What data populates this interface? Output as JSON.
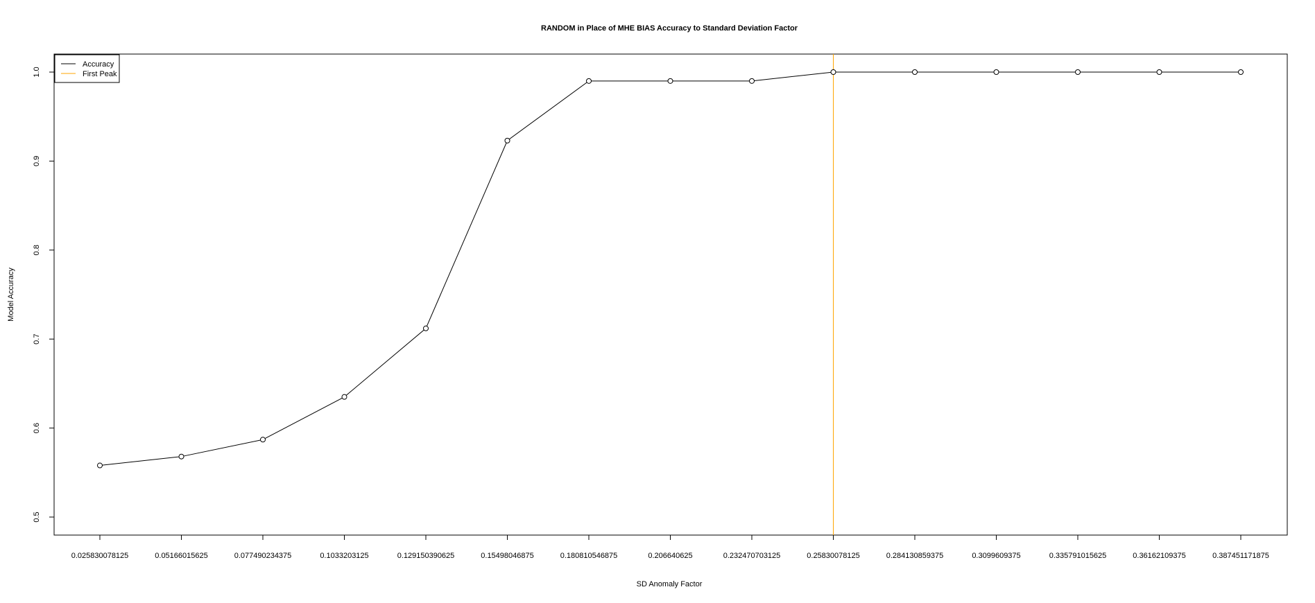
{
  "chart_data": {
    "type": "line",
    "title": "RANDOM in Place of MHE BIAS Accuracy to Standard Deviation Factor",
    "xlabel": "SD Anomaly Factor",
    "ylabel": "Model Accuracy",
    "categories": [
      "0.025830078125",
      "0.05166015625",
      "0.077490234375",
      "0.1033203125",
      "0.129150390625",
      "0.15498046875",
      "0.180810546875",
      "0.206640625",
      "0.232470703125",
      "0.25830078125",
      "0.284130859375",
      "0.3099609375",
      "0.335791015625",
      "0.36162109375",
      "0.387451171875"
    ],
    "series": [
      {
        "name": "Accuracy",
        "color": "#000000",
        "values": [
          0.558,
          0.568,
          0.587,
          0.635,
          0.712,
          0.923,
          0.99,
          0.99,
          0.99,
          1.0,
          1.0,
          1.0,
          1.0,
          1.0,
          1.0
        ]
      }
    ],
    "vline": {
      "name": "First Peak",
      "color": "#ffa500",
      "x": "0.25830078125"
    },
    "yticks": [
      "0.5",
      "0.6",
      "0.7",
      "0.8",
      "0.9",
      "1.0"
    ],
    "ylim": [
      0.5,
      1.0
    ],
    "legend_position": "top-left",
    "grid": false
  }
}
